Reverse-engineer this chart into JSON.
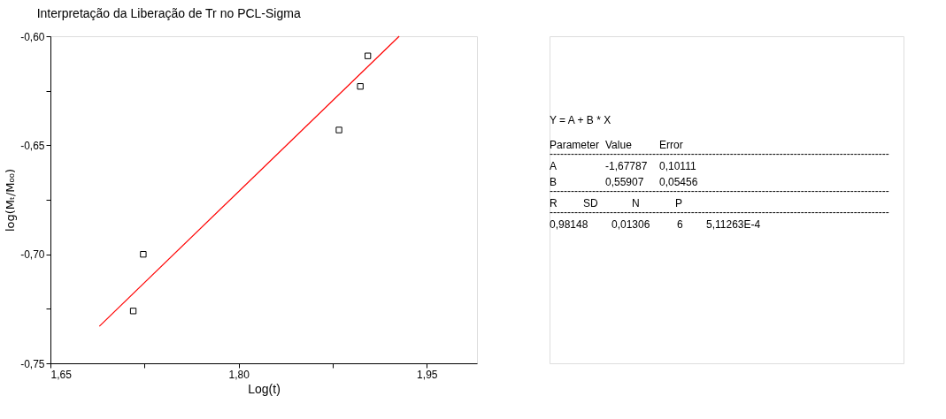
{
  "chart_data": {
    "type": "scatter",
    "title": "Interpretação da Liberação de Tr no PCL-Sigma",
    "xlabel": "Log(t)",
    "ylabel": "log(Mₜ/M₀₀)",
    "xlim": [
      1.65,
      1.99
    ],
    "ylim": [
      -0.75,
      -0.6
    ],
    "xticks": [
      {
        "value": 1.65,
        "label": "1,65"
      },
      {
        "value": 1.725,
        "label": null
      },
      {
        "value": 1.8,
        "label": "1,80"
      },
      {
        "value": 1.875,
        "label": null
      },
      {
        "value": 1.95,
        "label": "1,95"
      }
    ],
    "yticks": [
      {
        "value": -0.75,
        "label": "-0,75"
      },
      {
        "value": -0.725,
        "label": null
      },
      {
        "value": -0.7,
        "label": "-0,70"
      },
      {
        "value": -0.675,
        "label": null
      },
      {
        "value": -0.65,
        "label": "-0,65"
      },
      {
        "value": -0.625,
        "label": null
      },
      {
        "value": -0.6,
        "label": "-0,60"
      }
    ],
    "grid": false,
    "marker": "square",
    "series": [
      {
        "color": "#000000",
        "x": [
          1.716,
          1.724,
          1.88,
          1.897,
          1.903
        ],
        "values": [
          -0.726,
          -0.7,
          -0.643,
          -0.623,
          -0.609
        ]
      },
      {
        "type": "line",
        "marker": "none",
        "line_style": "solid",
        "color": "#ff0000",
        "x": [
          1.689,
          1.928
        ],
        "values": [
          -0.733,
          -0.6
        ]
      }
    ],
    "annotations": [
      "Y = A + B * X",
      "Parameter\tValue\tError",
      "------------------------------------------------------------------------------------------------",
      "A\t-1,67787\t0,10111",
      "B\t0,55907\t0,05456",
      "------------------------------------------------------------------------------------------------",
      "R\tSD\tN\tP",
      "------------------------------------------------------------------------------------------------",
      "0,98148\t0,01306\t6\t5,11263E-4"
    ]
  }
}
